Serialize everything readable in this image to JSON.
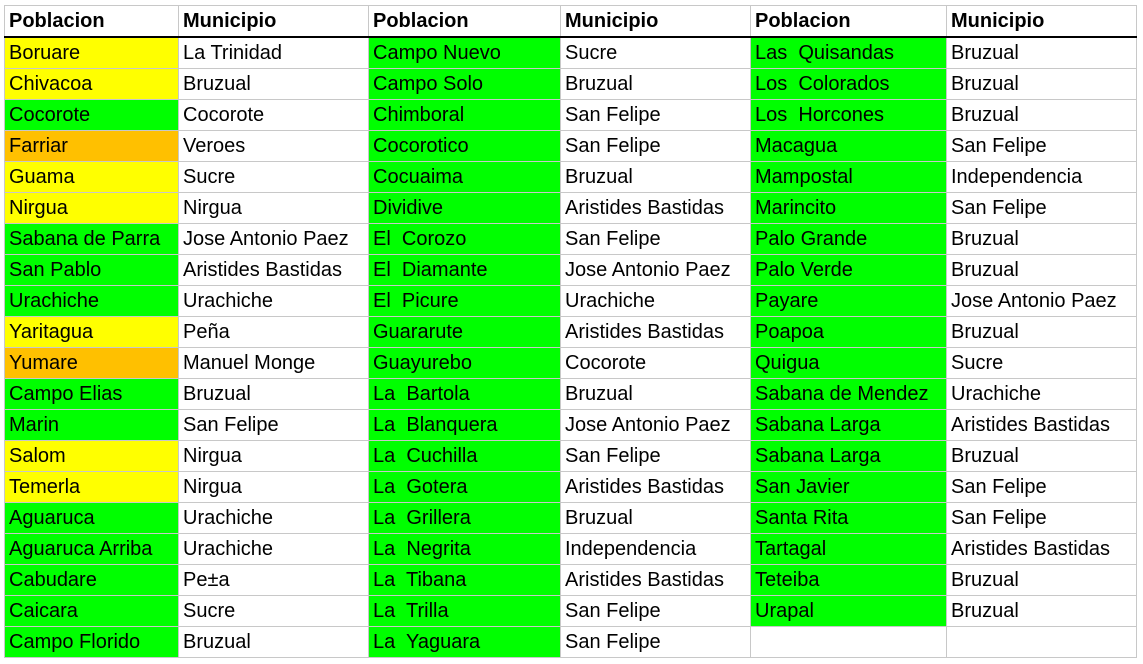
{
  "headers": [
    "Poblacion",
    "Municipio",
    "Poblacion",
    "Municipio",
    "Poblacion",
    "Municipio"
  ],
  "colors": {
    "y": "#ffff00",
    "o": "#ffc000",
    "g": "#00ff00"
  },
  "rows": [
    [
      [
        "Boruare",
        "y"
      ],
      [
        "La Trinidad",
        ""
      ],
      [
        "Campo Nuevo",
        "g"
      ],
      [
        "Sucre",
        ""
      ],
      [
        "Las  Quisandas",
        "g"
      ],
      [
        "Bruzual",
        ""
      ]
    ],
    [
      [
        "Chivacoa",
        "y"
      ],
      [
        "Bruzual",
        ""
      ],
      [
        "Campo Solo",
        "g"
      ],
      [
        "Bruzual",
        ""
      ],
      [
        "Los  Colorados",
        "g"
      ],
      [
        "Bruzual",
        ""
      ]
    ],
    [
      [
        "Cocorote",
        "g"
      ],
      [
        "Cocorote",
        ""
      ],
      [
        "Chimboral",
        "g"
      ],
      [
        "San Felipe",
        ""
      ],
      [
        "Los  Horcones",
        "g"
      ],
      [
        "Bruzual",
        ""
      ]
    ],
    [
      [
        "Farriar",
        "o"
      ],
      [
        "Veroes",
        ""
      ],
      [
        "Cocorotico",
        "g"
      ],
      [
        "San Felipe",
        ""
      ],
      [
        "Macagua",
        "g"
      ],
      [
        "San Felipe",
        ""
      ]
    ],
    [
      [
        "Guama",
        "y"
      ],
      [
        "Sucre",
        ""
      ],
      [
        "Cocuaima",
        "g"
      ],
      [
        "Bruzual",
        ""
      ],
      [
        "Mampostal",
        "g"
      ],
      [
        "Independencia",
        ""
      ]
    ],
    [
      [
        "Nirgua",
        "y"
      ],
      [
        "Nirgua",
        ""
      ],
      [
        "Dividive",
        "g"
      ],
      [
        "Aristides Bastidas",
        ""
      ],
      [
        "Marincito",
        "g"
      ],
      [
        "San Felipe",
        ""
      ]
    ],
    [
      [
        "Sabana de Parra",
        "g"
      ],
      [
        "Jose Antonio Paez",
        ""
      ],
      [
        "El  Corozo",
        "g"
      ],
      [
        "San Felipe",
        ""
      ],
      [
        "Palo Grande",
        "g"
      ],
      [
        "Bruzual",
        ""
      ]
    ],
    [
      [
        "San Pablo",
        "g"
      ],
      [
        "Aristides Bastidas",
        ""
      ],
      [
        "El  Diamante",
        "g"
      ],
      [
        "Jose Antonio Paez",
        ""
      ],
      [
        "Palo Verde",
        "g"
      ],
      [
        "Bruzual",
        ""
      ]
    ],
    [
      [
        "Urachiche",
        "g"
      ],
      [
        "Urachiche",
        ""
      ],
      [
        "El  Picure",
        "g"
      ],
      [
        "Urachiche",
        ""
      ],
      [
        "Payare",
        "g"
      ],
      [
        "Jose Antonio Paez",
        ""
      ]
    ],
    [
      [
        "Yaritagua",
        "y"
      ],
      [
        "Peña",
        ""
      ],
      [
        "Guararute",
        "g"
      ],
      [
        "Aristides Bastidas",
        ""
      ],
      [
        "Poapoa",
        "g"
      ],
      [
        "Bruzual",
        ""
      ]
    ],
    [
      [
        "Yumare",
        "o"
      ],
      [
        "Manuel Monge",
        ""
      ],
      [
        "Guayurebo",
        "g"
      ],
      [
        "Cocorote",
        ""
      ],
      [
        "Quigua",
        "g"
      ],
      [
        "Sucre",
        ""
      ]
    ],
    [
      [
        "Campo Elias",
        "g"
      ],
      [
        "Bruzual",
        ""
      ],
      [
        "La  Bartola",
        "g"
      ],
      [
        "Bruzual",
        ""
      ],
      [
        "Sabana de Mendez",
        "g"
      ],
      [
        "Urachiche",
        ""
      ]
    ],
    [
      [
        "Marin",
        "g"
      ],
      [
        "San Felipe",
        ""
      ],
      [
        "La  Blanquera",
        "g"
      ],
      [
        "Jose Antonio Paez",
        ""
      ],
      [
        "Sabana Larga",
        "g"
      ],
      [
        "Aristides Bastidas",
        ""
      ]
    ],
    [
      [
        "Salom",
        "y"
      ],
      [
        "Nirgua",
        ""
      ],
      [
        "La  Cuchilla",
        "g"
      ],
      [
        "San Felipe",
        ""
      ],
      [
        "Sabana Larga",
        "g"
      ],
      [
        "Bruzual",
        ""
      ]
    ],
    [
      [
        "Temerla",
        "y"
      ],
      [
        "Nirgua",
        ""
      ],
      [
        "La  Gotera",
        "g"
      ],
      [
        "Aristides Bastidas",
        ""
      ],
      [
        "San Javier",
        "g"
      ],
      [
        "San Felipe",
        ""
      ]
    ],
    [
      [
        "Aguaruca",
        "g"
      ],
      [
        "Urachiche",
        ""
      ],
      [
        "La  Grillera",
        "g"
      ],
      [
        "Bruzual",
        ""
      ],
      [
        "Santa Rita",
        "g"
      ],
      [
        "San Felipe",
        ""
      ]
    ],
    [
      [
        "Aguaruca Arriba",
        "g"
      ],
      [
        "Urachiche",
        ""
      ],
      [
        "La  Negrita",
        "g"
      ],
      [
        "Independencia",
        ""
      ],
      [
        "Tartagal",
        "g"
      ],
      [
        "Aristides Bastidas",
        ""
      ]
    ],
    [
      [
        "Cabudare",
        "g"
      ],
      [
        "Pe±a",
        ""
      ],
      [
        "La  Tibana",
        "g"
      ],
      [
        "Aristides Bastidas",
        ""
      ],
      [
        "Teteiba",
        "g"
      ],
      [
        "Bruzual",
        ""
      ]
    ],
    [
      [
        "Caicara",
        "g"
      ],
      [
        "Sucre",
        ""
      ],
      [
        "La  Trilla",
        "g"
      ],
      [
        "San Felipe",
        ""
      ],
      [
        "Urapal",
        "g"
      ],
      [
        "Bruzual",
        ""
      ]
    ],
    [
      [
        "Campo Florido",
        "g"
      ],
      [
        "Bruzual",
        ""
      ],
      [
        "La  Yaguara",
        "g"
      ],
      [
        "San Felipe",
        ""
      ],
      [
        "",
        ""
      ],
      [
        "",
        ""
      ]
    ]
  ]
}
